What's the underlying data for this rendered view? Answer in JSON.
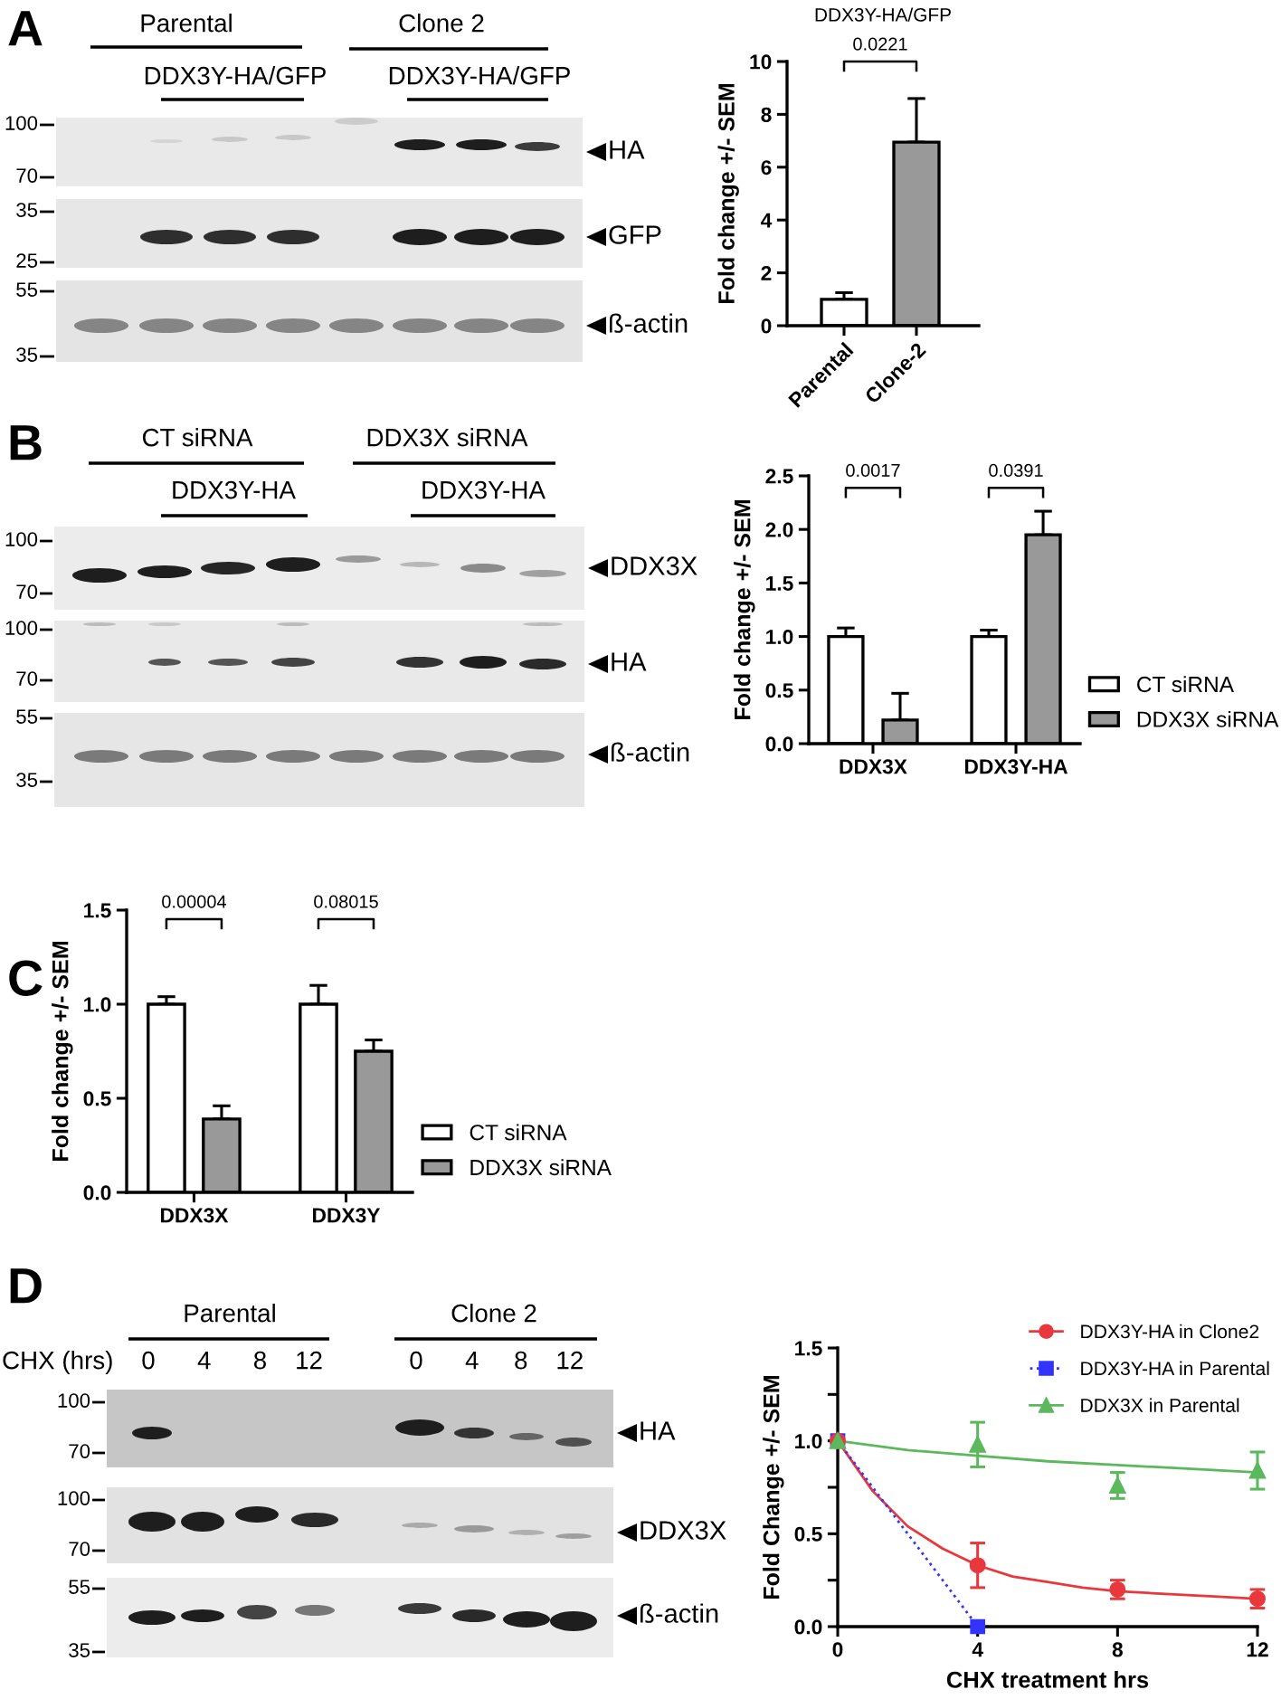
{
  "chart_data": [
    {
      "type": "other",
      "annotations": [
        "A",
        "Parental",
        "Clone 2",
        "DDX3Y-HA/GFP",
        "DDX3Y-HA/GFP",
        "100",
        "70",
        "35",
        "25",
        "55",
        "35",
        "HA",
        "GFP",
        "ß-actin"
      ]
    },
    {
      "type": "bar",
      "title": "DDX3Y-HA/GFP",
      "ylabel": "Fold change +/- SEM",
      "categories": [
        "Parental",
        "Clone-2"
      ],
      "values": [
        1.0,
        6.95
      ],
      "colors": [
        "#ffffff",
        "#999999"
      ],
      "errors": [
        [
          1.0,
          1.25
        ],
        [
          6.95,
          8.6
        ]
      ],
      "ylim": [
        0,
        10
      ],
      "yticks": [
        0,
        2,
        4,
        6,
        8,
        10
      ],
      "annotations": [
        "0.0221"
      ]
    },
    {
      "type": "other",
      "annotations": [
        "B",
        "CT siRNA",
        "DDX3X siRNA",
        "DDX3Y-HA",
        "DDX3Y-HA",
        "100",
        "70",
        "100",
        "70",
        "55",
        "35",
        "DDX3X",
        "HA",
        "ß-actin"
      ]
    },
    {
      "type": "bar",
      "ylabel": "Fold change +/- SEM",
      "categories": [
        "DDX3X",
        "DDX3Y-HA"
      ],
      "series": [
        {
          "name": "CT siRNA",
          "color": "#ffffff",
          "values": [
            1.0,
            1.0
          ],
          "errors": [
            [
              1.0,
              1.08
            ],
            [
              1.0,
              1.06
            ]
          ]
        },
        {
          "name": "DDX3X siRNA",
          "color": "#999999",
          "values": [
            0.22,
            1.95
          ],
          "errors": [
            [
              0.22,
              0.47
            ],
            [
              1.95,
              2.17
            ]
          ]
        }
      ],
      "ylim": [
        0,
        2.5
      ],
      "yticks": [
        {
          "value": 0,
          "label": "0.0"
        },
        {
          "value": 0.5,
          "label": "0.5"
        },
        {
          "value": 1,
          "label": "1.0"
        },
        {
          "value": 1.5,
          "label": "1.5"
        },
        {
          "value": 2,
          "label": "2.0"
        },
        {
          "value": 2.5,
          "label": "2.5"
        }
      ],
      "annotations": [
        "0.0017",
        "0.0391"
      ],
      "legend": "right"
    },
    {
      "type": "other",
      "annotations": [
        "C"
      ]
    },
    {
      "type": "bar",
      "ylabel": "Fold change +/- SEM",
      "categories": [
        "DDX3X",
        "DDX3Y"
      ],
      "series": [
        {
          "name": "CT siRNA",
          "color": "#ffffff",
          "values": [
            1.0,
            1.0
          ],
          "errors": [
            [
              1.0,
              1.04
            ],
            [
              1.0,
              1.1
            ]
          ]
        },
        {
          "name": "DDX3X siRNA",
          "color": "#999999",
          "values": [
            0.39,
            0.75
          ],
          "errors": [
            [
              0.39,
              0.46
            ],
            [
              0.75,
              0.81
            ]
          ]
        }
      ],
      "ylim": [
        0,
        1.5
      ],
      "yticks": [
        {
          "value": 0,
          "label": "0.0"
        },
        {
          "value": 0.5,
          "label": "0.5"
        },
        {
          "value": 1,
          "label": "1.0"
        },
        {
          "value": 1.5,
          "label": "1.5"
        }
      ],
      "annotations": [
        "0.00004",
        "0.08015"
      ],
      "legend": "right"
    },
    {
      "type": "other",
      "annotations": [
        "D",
        "Parental",
        "Clone 2",
        "CHX (hrs)",
        "0 4 8 12",
        "0 4 8 12",
        "100",
        "70",
        "100",
        "70",
        "55",
        "35",
        "HA",
        "DDX3X",
        "ß-actin"
      ]
    },
    {
      "type": "line",
      "xlabel": "CHX treatment hrs",
      "ylabel": "Fold Change +/- SEM",
      "xlim": [
        0,
        12
      ],
      "xticks": [
        0,
        4,
        8,
        12
      ],
      "ylim": [
        0,
        1.5
      ],
      "yticks": [
        {
          "value": 0,
          "label": "0.0"
        },
        {
          "value": 0.25,
          "label": null
        },
        {
          "value": 0.5,
          "label": "0.5"
        },
        {
          "value": 0.75,
          "label": null
        },
        {
          "value": 1,
          "label": "1.0"
        },
        {
          "value": 1.25,
          "label": null
        },
        {
          "value": 1.5,
          "label": "1.5"
        }
      ],
      "legend": "top right",
      "series": [
        {
          "type": "line",
          "color": "#e8383d",
          "line_style": "solid",
          "marker": "none",
          "x": [
            0,
            1,
            2,
            3,
            4,
            5,
            6,
            7,
            8,
            9,
            10,
            11,
            12
          ],
          "values": [
            1.0,
            0.73,
            0.54,
            0.42,
            0.33,
            0.27,
            0.24,
            0.21,
            0.19,
            0.18,
            0.17,
            0.16,
            0.15
          ]
        },
        {
          "type": "scatter",
          "name": "DDX3Y-HA in Clone2",
          "color": "#e8383d",
          "marker": "circle",
          "x": [
            0,
            4,
            8,
            12
          ],
          "values": [
            1.0,
            0.33,
            0.2,
            0.15
          ],
          "errors": [
            null,
            0.12,
            0.05,
            0.05
          ]
        },
        {
          "type": "line",
          "name": "DDX3Y-HA in Parental",
          "color": "#3333ff",
          "line_style": "dotted",
          "marker": "square",
          "x": [
            0,
            4
          ],
          "values": [
            1.0,
            0.0
          ]
        },
        {
          "type": "line",
          "color": "#5cb85c",
          "line_style": "solid",
          "marker": "none",
          "x": [
            0,
            2,
            4,
            6,
            8,
            10,
            12
          ],
          "values": [
            1.0,
            0.95,
            0.92,
            0.89,
            0.87,
            0.85,
            0.83
          ]
        },
        {
          "type": "scatter",
          "name": "DDX3X in Parental",
          "color": "#5cb85c",
          "marker": "triangle",
          "x": [
            0,
            4,
            8,
            12
          ],
          "values": [
            1.0,
            0.98,
            0.76,
            0.84
          ],
          "errors": [
            null,
            0.12,
            0.07,
            0.1
          ]
        }
      ]
    }
  ]
}
